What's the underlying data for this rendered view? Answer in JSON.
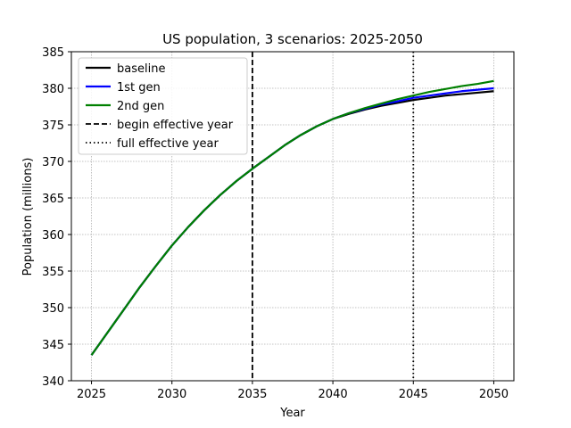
{
  "chart_data": {
    "type": "line",
    "title": "US population, 3 scenarios: 2025-2050",
    "xlabel": "Year",
    "ylabel": "Population (millions)",
    "xlim": [
      2023.75,
      2051.25
    ],
    "ylim": [
      340,
      385
    ],
    "xticks": [
      2025,
      2030,
      2035,
      2040,
      2045,
      2050
    ],
    "yticks": [
      340,
      345,
      350,
      355,
      360,
      365,
      370,
      375,
      380,
      385
    ],
    "grid": true,
    "legend_position": "top-left",
    "x": [
      2025,
      2026,
      2027,
      2028,
      2029,
      2030,
      2031,
      2032,
      2033,
      2034,
      2035,
      2036,
      2037,
      2038,
      2039,
      2040,
      2041,
      2042,
      2043,
      2044,
      2045,
      2046,
      2047,
      2048,
      2049,
      2050
    ],
    "series": [
      {
        "name": "baseline",
        "color": "#000000",
        "values": [
          343.5,
          346.6,
          349.7,
          352.8,
          355.7,
          358.5,
          361.0,
          363.3,
          365.4,
          367.3,
          369.0,
          370.6,
          372.2,
          373.6,
          374.8,
          375.8,
          376.5,
          377.1,
          377.6,
          378.0,
          378.4,
          378.7,
          379.0,
          379.2,
          379.4,
          379.6
        ]
      },
      {
        "name": "1st gen",
        "color": "#0000ff",
        "values": [
          343.5,
          346.6,
          349.7,
          352.8,
          355.7,
          358.5,
          361.0,
          363.3,
          365.4,
          367.3,
          369.0,
          370.6,
          372.2,
          373.6,
          374.8,
          375.8,
          376.6,
          377.2,
          377.8,
          378.2,
          378.7,
          379.0,
          379.3,
          379.6,
          379.8,
          380.0
        ]
      },
      {
        "name": "2nd gen",
        "color": "#008000",
        "values": [
          343.5,
          346.6,
          349.7,
          352.8,
          355.7,
          358.5,
          361.0,
          363.3,
          365.4,
          367.3,
          369.0,
          370.6,
          372.2,
          373.6,
          374.8,
          375.8,
          376.6,
          377.3,
          377.9,
          378.5,
          379.0,
          379.5,
          379.9,
          380.3,
          380.6,
          381.0
        ]
      }
    ],
    "vlines": [
      {
        "name": "begin effective year",
        "x": 2035,
        "style": "dashed",
        "color": "#000000"
      },
      {
        "name": "full effective year",
        "x": 2045,
        "style": "dotted",
        "color": "#000000"
      }
    ]
  }
}
